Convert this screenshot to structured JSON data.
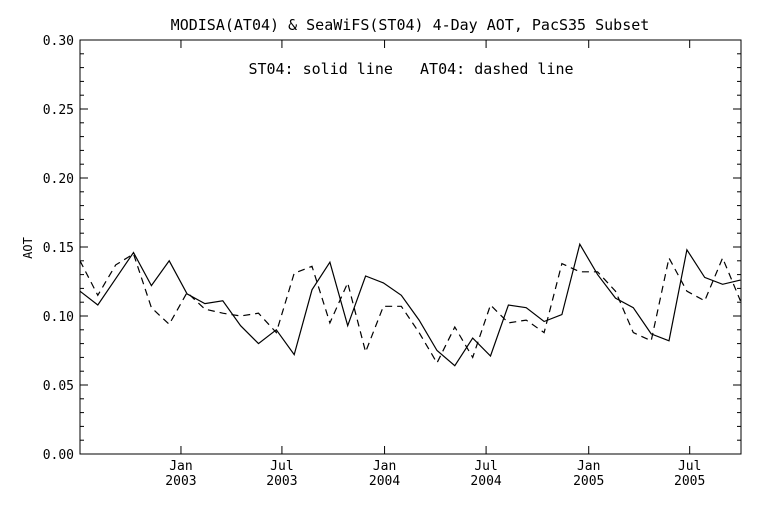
{
  "chart_data": {
    "type": "line",
    "title": "MODISA(AT04) & SeaWiFS(ST04) 4-Day AOT, PacS35 Subset",
    "annotation": "ST04: solid line   AT04: dashed line",
    "xlabel": "",
    "ylabel": "AOT",
    "ylim": [
      0.0,
      0.3
    ],
    "yticks": [
      "0.00",
      "0.05",
      "0.10",
      "0.15",
      "0.20",
      "0.25",
      "0.30"
    ],
    "xlim": [
      "2002-07-04",
      "2005-10-01"
    ],
    "xticks": [
      {
        "date": "2003-01-01",
        "month": "Jan",
        "year": "2003"
      },
      {
        "date": "2003-07-01",
        "month": "Jul",
        "year": "2003"
      },
      {
        "date": "2004-01-01",
        "month": "Jan",
        "year": "2004"
      },
      {
        "date": "2004-07-01",
        "month": "Jul",
        "year": "2004"
      },
      {
        "date": "2005-01-01",
        "month": "Jan",
        "year": "2005"
      },
      {
        "date": "2005-07-01",
        "month": "Jul",
        "year": "2005"
      }
    ],
    "grid": false,
    "series": [
      {
        "name": "ST04",
        "style": "solid",
        "color": "#000000",
        "x": [
          "2002-07-04",
          "2002-08-05",
          "2002-09-06",
          "2002-10-08",
          "2002-11-09",
          "2002-12-11",
          "2003-01-12",
          "2003-02-13",
          "2003-03-17",
          "2003-04-18",
          "2003-05-20",
          "2003-06-21",
          "2003-07-23",
          "2003-08-24",
          "2003-09-25",
          "2003-10-27",
          "2003-11-28",
          "2003-12-30",
          "2004-01-31",
          "2004-03-03",
          "2004-04-04",
          "2004-05-06",
          "2004-06-07",
          "2004-07-09",
          "2004-08-10",
          "2004-09-11",
          "2004-10-13",
          "2004-11-14",
          "2004-12-16",
          "2005-01-17",
          "2005-02-18",
          "2005-03-22",
          "2005-04-23",
          "2005-05-25",
          "2005-06-26",
          "2005-07-28",
          "2005-08-29",
          "2005-09-30"
        ],
        "values": [
          0.118,
          0.108,
          0.127,
          0.146,
          0.122,
          0.14,
          0.116,
          0.109,
          0.111,
          0.093,
          0.08,
          0.09,
          0.072,
          0.119,
          0.139,
          0.093,
          0.129,
          0.124,
          0.115,
          0.097,
          0.075,
          0.064,
          0.084,
          0.071,
          0.108,
          0.106,
          0.096,
          0.101,
          0.152,
          0.13,
          0.113,
          0.106,
          0.087,
          0.082,
          0.148,
          0.128,
          0.123,
          0.126
        ]
      },
      {
        "name": "AT04",
        "style": "dashed",
        "color": "#000000",
        "x": [
          "2002-07-04",
          "2002-08-05",
          "2002-09-06",
          "2002-10-08",
          "2002-11-09",
          "2002-12-11",
          "2003-01-12",
          "2003-02-13",
          "2003-03-17",
          "2003-04-18",
          "2003-05-20",
          "2003-06-21",
          "2003-07-23",
          "2003-08-24",
          "2003-09-25",
          "2003-10-27",
          "2003-11-28",
          "2003-12-30",
          "2004-01-31",
          "2004-03-03",
          "2004-04-04",
          "2004-05-06",
          "2004-06-07",
          "2004-07-09",
          "2004-08-10",
          "2004-09-11",
          "2004-10-13",
          "2004-11-14",
          "2004-12-16",
          "2005-01-17",
          "2005-02-18",
          "2005-03-22",
          "2005-04-23",
          "2005-05-25",
          "2005-06-26",
          "2005-07-28",
          "2005-08-29",
          "2005-09-30"
        ],
        "values": [
          0.14,
          0.115,
          0.137,
          0.145,
          0.106,
          0.094,
          0.117,
          0.105,
          0.102,
          0.1,
          0.102,
          0.088,
          0.131,
          0.136,
          0.095,
          0.124,
          0.074,
          0.107,
          0.107,
          0.088,
          0.066,
          0.092,
          0.07,
          0.108,
          0.095,
          0.097,
          0.088,
          0.138,
          0.132,
          0.132,
          0.118,
          0.088,
          0.082,
          0.142,
          0.118,
          0.111,
          0.142,
          0.111
        ]
      }
    ]
  }
}
